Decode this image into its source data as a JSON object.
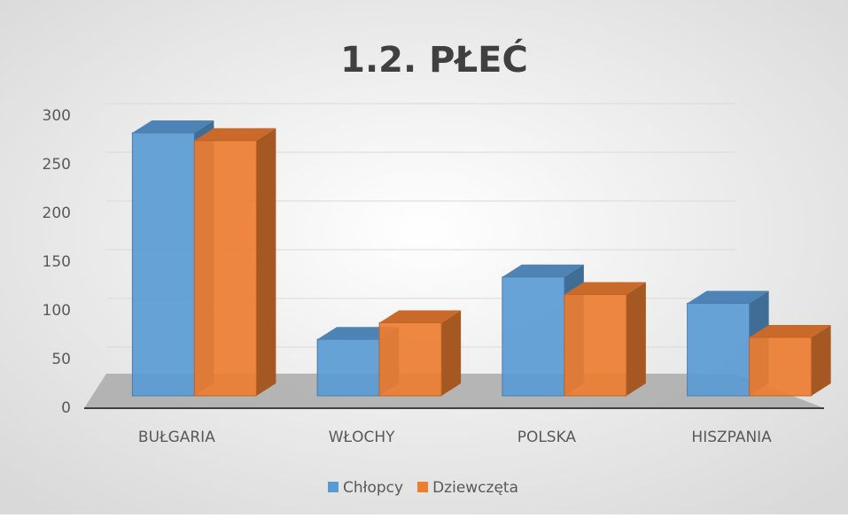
{
  "chart_data": {
    "type": "bar3d",
    "title": "1.2. PŁEĆ",
    "categories": [
      "BUŁGARIA",
      "WŁOCHY",
      "POLSKA",
      "HISZPANIA"
    ],
    "series": [
      {
        "name": "Chłopcy",
        "color": "#5b9bd5",
        "values": [
          270,
          58,
          122,
          95
        ]
      },
      {
        "name": "Dziewczęta",
        "color": "#ed7d31",
        "values": [
          262,
          75,
          104,
          60
        ]
      }
    ],
    "ylim": [
      0,
      300
    ],
    "yticks": [
      0,
      50,
      100,
      150,
      200,
      250,
      300
    ],
    "grid": true,
    "legend": "bottom"
  }
}
